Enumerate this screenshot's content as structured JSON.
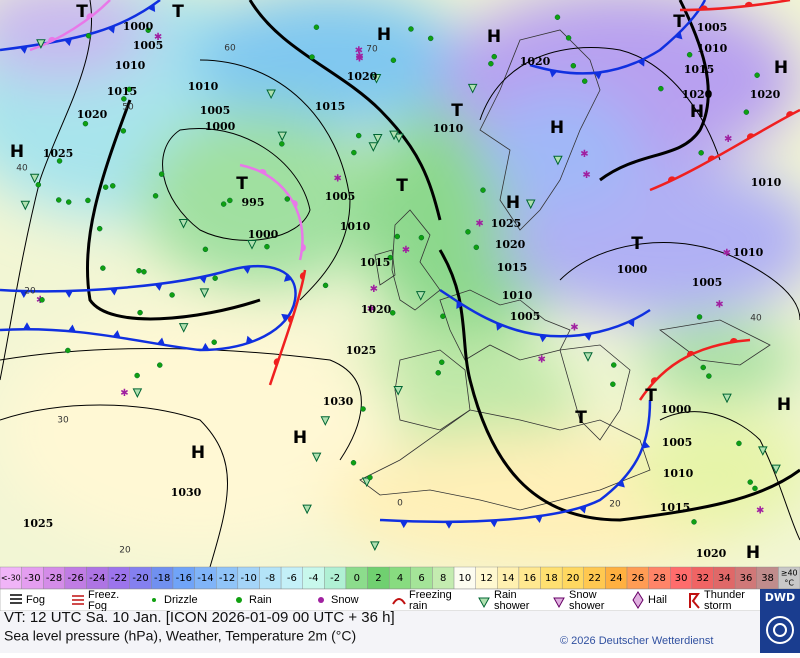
{
  "map": {
    "pressure_labels": [
      "1000",
      "1005",
      "1010",
      "1015",
      "1020",
      "1025",
      "1010",
      "1005",
      "1000",
      "995",
      "1000",
      "1005",
      "1010",
      "1015",
      "1020",
      "1025",
      "1030",
      "1030",
      "1025",
      "1020",
      "1015",
      "1010",
      "1020",
      "1025",
      "1020",
      "1015",
      "1010",
      "1005",
      "1000",
      "1005",
      "1010",
      "1010",
      "1020",
      "1005",
      "1010",
      "1015",
      "1020",
      "1000",
      "1005",
      "1010",
      "1015",
      "1020"
    ],
    "centers": [
      "H",
      "T",
      "T",
      "H",
      "H",
      "T",
      "H",
      "T",
      "T",
      "H",
      "H",
      "H",
      "T",
      "T",
      "T",
      "H",
      "H",
      "H",
      "H",
      "T"
    ],
    "isotherm_labels": [
      "40",
      "50",
      "60",
      "70",
      "20",
      "30",
      "0",
      "20",
      "20",
      "40"
    ]
  },
  "temperature_scale": {
    "unit": "°C",
    "cells": [
      {
        "label": "<-30",
        "color": "#f0b4f8"
      },
      {
        "label": "-30",
        "color": "#e49ef0"
      },
      {
        "label": "-28",
        "color": "#d48ce8"
      },
      {
        "label": "-26",
        "color": "#c07ce4"
      },
      {
        "label": "-24",
        "color": "#ae74e4"
      },
      {
        "label": "-22",
        "color": "#9c74ec"
      },
      {
        "label": "-20",
        "color": "#8480f0"
      },
      {
        "label": "-18",
        "color": "#7090f0"
      },
      {
        "label": "-16",
        "color": "#70a4f8"
      },
      {
        "label": "-14",
        "color": "#80b4f8"
      },
      {
        "label": "-12",
        "color": "#90c4f8"
      },
      {
        "label": "-10",
        "color": "#a4d4f8"
      },
      {
        "label": "-8",
        "color": "#b4e4f8"
      },
      {
        "label": "-6",
        "color": "#c4f0f8"
      },
      {
        "label": "-4",
        "color": "#c8f8ec"
      },
      {
        "label": "-2",
        "color": "#b0f0d4"
      },
      {
        "label": "0",
        "color": "#8cdc8c"
      },
      {
        "label": "2",
        "color": "#70d070"
      },
      {
        "label": "4",
        "color": "#88dc80"
      },
      {
        "label": "6",
        "color": "#a4e498"
      },
      {
        "label": "8",
        "color": "#c4ecb0"
      },
      {
        "label": "10",
        "color": "#fcfcf0"
      },
      {
        "label": "12",
        "color": "#fff8d0"
      },
      {
        "label": "14",
        "color": "#fff0b0"
      },
      {
        "label": "16",
        "color": "#ffe890"
      },
      {
        "label": "18",
        "color": "#ffe070"
      },
      {
        "label": "20",
        "color": "#ffd860"
      },
      {
        "label": "22",
        "color": "#ffc850"
      },
      {
        "label": "24",
        "color": "#ffb040"
      },
      {
        "label": "26",
        "color": "#ff9c54"
      },
      {
        "label": "28",
        "color": "#ff8468"
      },
      {
        "label": "30",
        "color": "#ff6c6c"
      },
      {
        "label": "32",
        "color": "#f06464"
      },
      {
        "label": "34",
        "color": "#e06868"
      },
      {
        "label": "36",
        "color": "#d07878"
      },
      {
        "label": "38",
        "color": "#c08c8c"
      },
      {
        "label": "≥40",
        "color": "#c8c8c8"
      }
    ]
  },
  "weather_legend": [
    "Fog",
    "Freez. Fog",
    "Drizzle",
    "Rain",
    "Snow",
    "Freezing rain",
    "Rain shower",
    "Snow shower",
    "Hail",
    "Thunder storm"
  ],
  "footer": {
    "valid_time": "VT: 12 UTC Sa.  10 Jan. [ICON 2026-01-09  00 UTC + 36 h]",
    "description": "Sea level pressure (hPa), Weather, Temperature 2m (°C)",
    "copyright": "© 2026 Deutscher Wetterdienst",
    "logo": "DWD"
  }
}
